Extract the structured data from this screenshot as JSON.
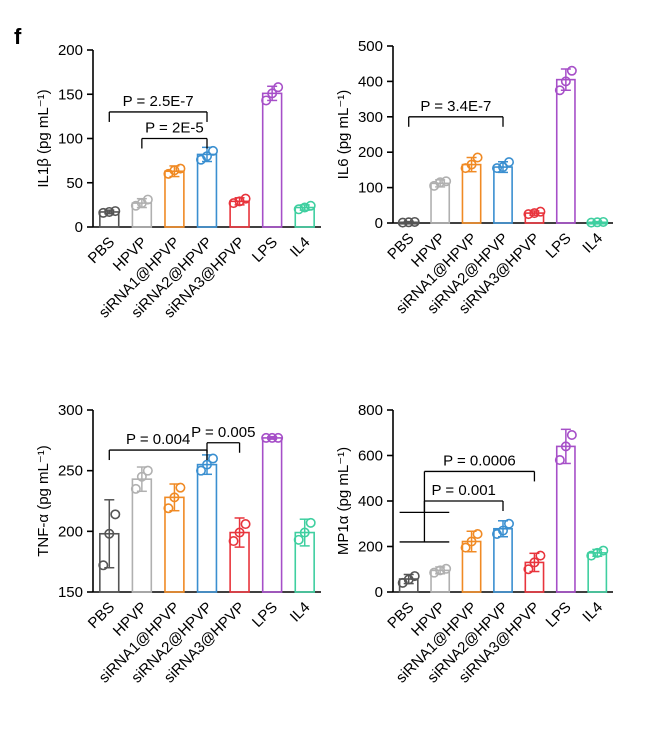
{
  "panel_label": "f",
  "colors": [
    "#555555",
    "#b0b0b0",
    "#f08a24",
    "#3a8fd0",
    "#e8343c",
    "#a64fc8",
    "#3fcfa0"
  ],
  "chart_data": [
    {
      "type": "bar",
      "categories": [
        "PBS",
        "HPVP",
        "siRNA1@HPVP",
        "siRNA2@HPVP",
        "siRNA3@HPVP",
        "LPS",
        "IL4"
      ],
      "values": [
        17,
        27,
        63,
        82,
        29,
        151,
        22
      ],
      "errors": [
        2,
        5,
        6,
        8,
        4,
        8,
        3
      ],
      "points": [
        [
          16,
          17,
          18
        ],
        [
          24,
          27,
          31
        ],
        [
          60,
          64,
          66
        ],
        [
          76,
          80,
          86
        ],
        [
          27,
          29,
          32
        ],
        [
          143,
          151,
          158
        ],
        [
          20,
          22,
          24
        ]
      ],
      "ylim": [
        0,
        200
      ],
      "yticks": [
        0,
        50,
        100,
        150,
        200
      ],
      "ylabel": "IL1β (pg mL⁻¹)",
      "annotations": [
        {
          "text": "P = 2.5E-7",
          "from": 0,
          "to": 3,
          "level": 130
        },
        {
          "text": "P = 2E-5",
          "from": 1,
          "to": 3,
          "level": 100
        }
      ]
    },
    {
      "type": "bar",
      "categories": [
        "PBS",
        "HPVP",
        "siRNA1@HPVP",
        "siRNA2@HPVP",
        "siRNA3@HPVP",
        "LPS",
        "IL4"
      ],
      "values": [
        2,
        112,
        165,
        158,
        28,
        405,
        2
      ],
      "errors": [
        2,
        10,
        20,
        15,
        6,
        30,
        2
      ],
      "points": [
        [
          1,
          2,
          3
        ],
        [
          105,
          115,
          118
        ],
        [
          155,
          165,
          185
        ],
        [
          155,
          158,
          172
        ],
        [
          25,
          28,
          32
        ],
        [
          375,
          400,
          430
        ],
        [
          1,
          2,
          3
        ]
      ],
      "ylim": [
        0,
        500
      ],
      "yticks": [
        0,
        100,
        200,
        300,
        400,
        500
      ],
      "ylabel": "IL6 (pg mL⁻¹)",
      "annotations": [
        {
          "text": "P = 3.4E-7",
          "from": 0,
          "to": 3,
          "level": 300
        }
      ]
    },
    {
      "type": "bar",
      "categories": [
        "PBS",
        "HPVP",
        "siRNA1@HPVP",
        "siRNA2@HPVP",
        "siRNA3@HPVP",
        "LPS",
        "IL4"
      ],
      "values": [
        198,
        243,
        228,
        255,
        199,
        277,
        199
      ],
      "errors": [
        28,
        10,
        11,
        8,
        12,
        1,
        11
      ],
      "points": [
        [
          172,
          198,
          214
        ],
        [
          235,
          245,
          250
        ],
        [
          219,
          228,
          236
        ],
        [
          250,
          255,
          260
        ],
        [
          192,
          199,
          206
        ],
        [
          277,
          277,
          277
        ],
        [
          193,
          199,
          207
        ]
      ],
      "ylim": [
        150,
        300
      ],
      "yticks": [
        150,
        200,
        250,
        300
      ],
      "ylabel": "TNF-α (pg mL⁻¹)",
      "annotations": [
        {
          "text": "P = 0.004",
          "from": 0,
          "to": 3,
          "level": 267
        },
        {
          "text": "P = 0.005",
          "from": 3,
          "to": 4,
          "level": 273
        }
      ]
    },
    {
      "type": "bar",
      "categories": [
        "PBS",
        "HPVP",
        "siRNA1@HPVP",
        "siRNA2@HPVP",
        "siRNA3@HPVP",
        "LPS",
        "IL4"
      ],
      "values": [
        57,
        95,
        222,
        278,
        130,
        640,
        172
      ],
      "errors": [
        20,
        15,
        45,
        35,
        40,
        75,
        15
      ],
      "points": [
        [
          40,
          55,
          70
        ],
        [
          85,
          95,
          102
        ],
        [
          195,
          222,
          255
        ],
        [
          255,
          270,
          300
        ],
        [
          100,
          130,
          160
        ],
        [
          580,
          640,
          690
        ],
        [
          160,
          172,
          182
        ]
      ],
      "ylim": [
        0,
        800
      ],
      "yticks": [
        0,
        200,
        400,
        600,
        800
      ],
      "ylabel": "MP1α (pg mL⁻¹)",
      "annotations": [
        {
          "text": "P = 0.001",
          "from": 0,
          "to": 3,
          "level": 400,
          "group_from": 1
        },
        {
          "text": "P = 0.0006",
          "from": 0,
          "to": 4,
          "level": 530,
          "group_from": 1
        }
      ]
    }
  ]
}
